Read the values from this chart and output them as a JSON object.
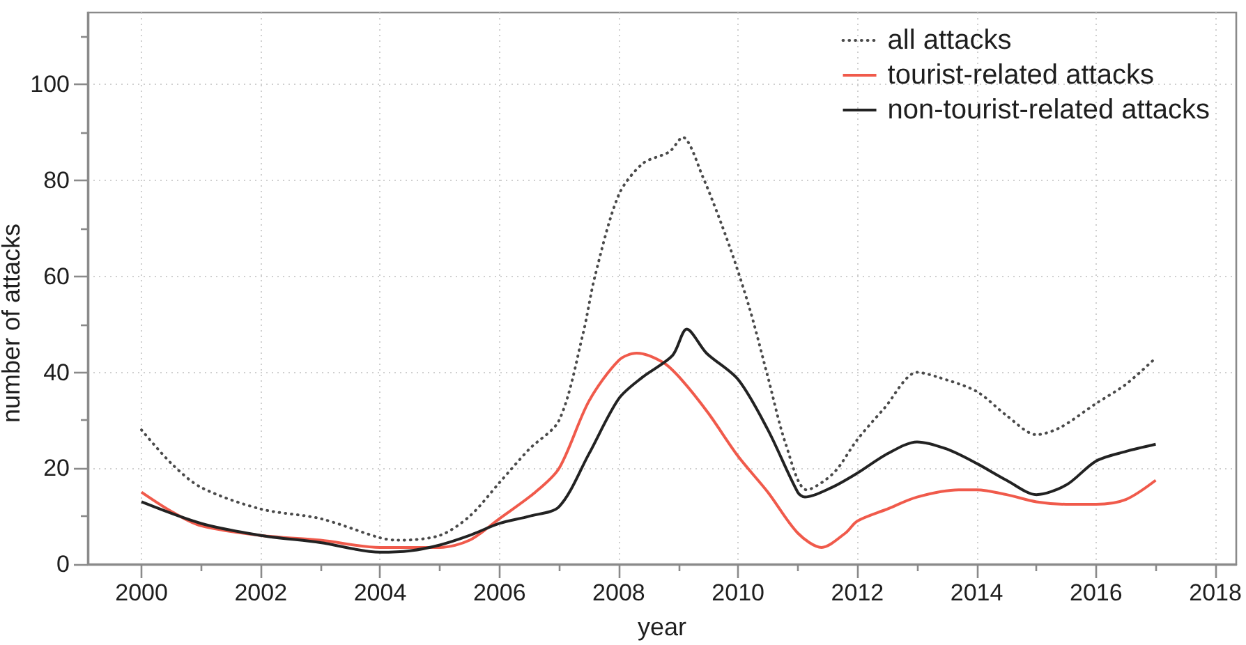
{
  "chart_data": {
    "type": "line",
    "xlabel": "year",
    "ylabel": "number of attacks",
    "xlim": [
      1999.1,
      2018.35
    ],
    "xticks": [
      2000,
      {
        "value": 2001,
        "label": null
      },
      2002,
      {
        "value": 2003,
        "label": null
      },
      2004,
      {
        "value": 2005,
        "label": null
      },
      2006,
      {
        "value": 2007,
        "label": null
      },
      2008,
      {
        "value": 2009,
        "label": null
      },
      2010,
      {
        "value": 2011,
        "label": null
      },
      2012,
      {
        "value": 2013,
        "label": null
      },
      2014,
      {
        "value": 2015,
        "label": null
      },
      2016,
      {
        "value": 2017,
        "label": null
      },
      2018
    ],
    "ylim": [
      0,
      115
    ],
    "yticks": [
      0,
      {
        "value": 10,
        "label": null
      },
      20,
      {
        "value": 30,
        "label": null
      },
      40,
      {
        "value": 50,
        "label": null
      },
      60,
      {
        "value": 70,
        "label": null
      },
      80,
      {
        "value": 90,
        "label": null
      },
      100,
      {
        "value": 110,
        "label": null
      }
    ],
    "grid": true,
    "legend": "top right",
    "series": [
      {
        "name": "all attacks",
        "color": "#4a4a4a",
        "line_style": "dotted",
        "x": [
          2000,
          2000.5,
          2001,
          2002,
          2003,
          2004,
          2004.3,
          2005,
          2005.5,
          2006,
          2006.5,
          2007,
          2007.4,
          2007.6,
          2008,
          2008.4,
          2008.85,
          2009.07,
          2009.4,
          2009.85,
          2010.2,
          2010.5,
          2010.8,
          2011.15,
          2011.6,
          2012,
          2012.45,
          2013,
          2013.35,
          2014,
          2014.5,
          2015,
          2015.4,
          2016,
          2016.5,
          2017
        ],
        "values": [
          28,
          21,
          16,
          11.5,
          9.5,
          5.5,
          5,
          6,
          10,
          17,
          24,
          30,
          48,
          60,
          77,
          83.5,
          86,
          89,
          81,
          66.5,
          53,
          39,
          25,
          15.5,
          19,
          26,
          32.5,
          40,
          39,
          36,
          31,
          27,
          28.5,
          33.5,
          37.5,
          43
        ]
      },
      {
        "name": "tourist-related attacks",
        "color": "#f05a4b",
        "line_style": "solid",
        "x": [
          2000,
          2000.5,
          2001,
          2002,
          2003,
          2004,
          2005,
          2005.5,
          2006,
          2006.6,
          2007,
          2007.5,
          2008,
          2008.3,
          2008.75,
          2009.05,
          2009.5,
          2010,
          2010.5,
          2011,
          2011.4,
          2011.8,
          2012,
          2012.5,
          2013,
          2013.7,
          2014,
          2014.5,
          2015,
          2015.5,
          2016,
          2016.5,
          2017
        ],
        "values": [
          15,
          11,
          8,
          6,
          5,
          3.5,
          3.5,
          5,
          9.5,
          15,
          20,
          34,
          42.5,
          44,
          42,
          38.5,
          31.5,
          22.5,
          15,
          6.5,
          3.5,
          6.5,
          9,
          11.5,
          14,
          15.5,
          15.5,
          14.5,
          13,
          12.5,
          12.5,
          13.5,
          17.5
        ]
      },
      {
        "name": "non-tourist-related attacks",
        "color": "#222222",
        "line_style": "solid",
        "x": [
          2000,
          2001,
          2002,
          2003,
          2004,
          2004.5,
          2005,
          2005.5,
          2006,
          2006.5,
          2007,
          2007.5,
          2008,
          2008.4,
          2008.9,
          2009.14,
          2009.47,
          2010,
          2010.5,
          2011,
          2011.12,
          2011.57,
          2012,
          2012.5,
          2013,
          2013.5,
          2014,
          2014.5,
          2015,
          2015.5,
          2016,
          2016.5,
          2017
        ],
        "values": [
          13,
          8.5,
          6,
          4.5,
          2.5,
          2.8,
          4,
          6,
          8.5,
          10,
          12,
          23,
          34.5,
          39,
          43.5,
          49,
          44,
          38.5,
          28,
          15,
          14,
          16,
          19,
          23,
          25.5,
          24,
          21,
          17.5,
          14.5,
          16.5,
          21.5,
          23.5,
          25
        ]
      }
    ]
  }
}
